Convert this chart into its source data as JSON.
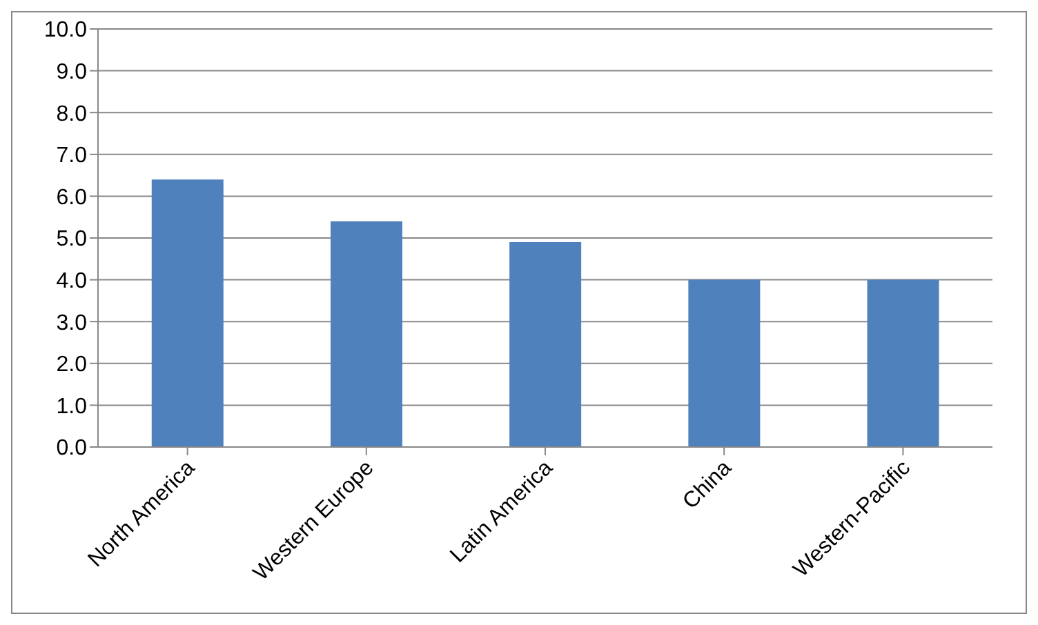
{
  "chart_data": {
    "type": "bar",
    "categories": [
      "North America",
      "Western Europe",
      "Latin America",
      "China",
      "Western-Pacific"
    ],
    "values": [
      6.4,
      5.4,
      4.9,
      4.0,
      4.0
    ],
    "color": "#4f81bd",
    "ylim": [
      0,
      10
    ],
    "yticks": [
      {
        "value": 0,
        "label": "0.0"
      },
      {
        "value": 1,
        "label": "1.0"
      },
      {
        "value": 2,
        "label": "2.0"
      },
      {
        "value": 3,
        "label": "3.0"
      },
      {
        "value": 4,
        "label": "4.0"
      },
      {
        "value": 5,
        "label": "5.0"
      },
      {
        "value": 6,
        "label": "6.0"
      },
      {
        "value": 7,
        "label": "7.0"
      },
      {
        "value": 8,
        "label": "8.0"
      },
      {
        "value": 9,
        "label": "9.0"
      },
      {
        "value": 10,
        "label": "10.0"
      }
    ],
    "grid": "y",
    "legend": false
  }
}
